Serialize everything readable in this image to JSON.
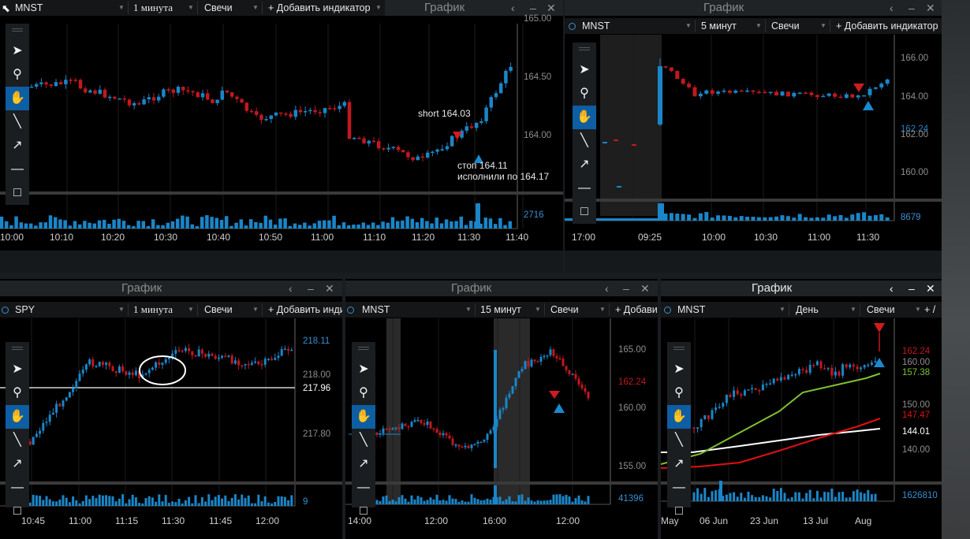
{
  "colors": {
    "up": "#1a86c9",
    "down": "#c0191f",
    "bg": "#000000",
    "frame": "#1f2326",
    "active_tool": "#0d5ea3"
  },
  "tools": [
    {
      "name": "pointer-tool",
      "icon": "cursor-icon",
      "glyph": "➤"
    },
    {
      "name": "zoom-tool",
      "icon": "magnifier-icon",
      "glyph": "⚲"
    },
    {
      "name": "pan-tool",
      "icon": "hand-icon",
      "glyph": "✋",
      "active": true
    },
    {
      "name": "line-tool",
      "icon": "line-icon",
      "glyph": "╲"
    },
    {
      "name": "arrow-tool",
      "icon": "arrow-icon",
      "glyph": "↗"
    },
    {
      "name": "hline-tool",
      "icon": "horizontal-line-icon",
      "glyph": "—"
    },
    {
      "name": "rect-tool",
      "icon": "rectangle-icon",
      "glyph": "□"
    }
  ],
  "p1": {
    "title": "График",
    "symbol": "MNST",
    "interval": "1 минута",
    "type": "Свечи",
    "add_indicator": "+ Добавить индикатор",
    "y_labels": [
      "165.00",
      "164.50",
      "164.00"
    ],
    "volume_label": "2716",
    "x_labels": [
      "10:00",
      "10:10",
      "10:20",
      "10:30",
      "10:40",
      "10:50",
      "11:00",
      "11:10",
      "11:20",
      "11:30",
      "11:40"
    ],
    "ann_short": "short 164.03",
    "ann_stop": "стоп 164.11",
    "ann_exec": "исполнили по 164.17"
  },
  "p2": {
    "title": "График",
    "symbol": "MNST",
    "interval": "5 минут",
    "type": "Свечи",
    "add_indicator": "+ Добавить индикатор",
    "y_labels": [
      "166.00",
      "164.00",
      "162.00",
      "160.00"
    ],
    "price_tag": "162.24",
    "volume_label": "8679",
    "x_labels": [
      "17:00",
      "09:25",
      "10:00",
      "10:30",
      "11:00",
      "11:30"
    ]
  },
  "p3": {
    "title": "График",
    "symbol": "SPY",
    "interval": "1 минута",
    "type": "Свечи",
    "add_indicator": "+ Добавить инди",
    "y_labels": [
      "218.11",
      "218.00",
      "217.96",
      "217.80"
    ],
    "volume_label": "9",
    "x_labels": [
      "10:45",
      "11:00",
      "11:15",
      "11:30",
      "11:45",
      "12:00"
    ]
  },
  "p4": {
    "title": "График",
    "symbol": "MNST",
    "interval": "15 минут",
    "type": "Свечи",
    "add_indicator": "+ Добави",
    "y_labels": [
      "165.00",
      "162.24",
      "160.00",
      "155.00"
    ],
    "volume_label": "41396",
    "x_labels": [
      "14:00",
      "12:00",
      "16:00",
      "12:00"
    ]
  },
  "p5": {
    "title": "График",
    "symbol": "MNST",
    "interval": "День",
    "type": "Свечи",
    "add_indicator": "+ /",
    "y_labels": [
      "162.24",
      "160.00",
      "157.38",
      "150.00",
      "147.47",
      "144.01",
      "140.00"
    ],
    "volume_label": "1626810",
    "x_labels": [
      "May",
      "06 Jun",
      "23 Jun",
      "13 Jul",
      "Aug"
    ]
  }
}
